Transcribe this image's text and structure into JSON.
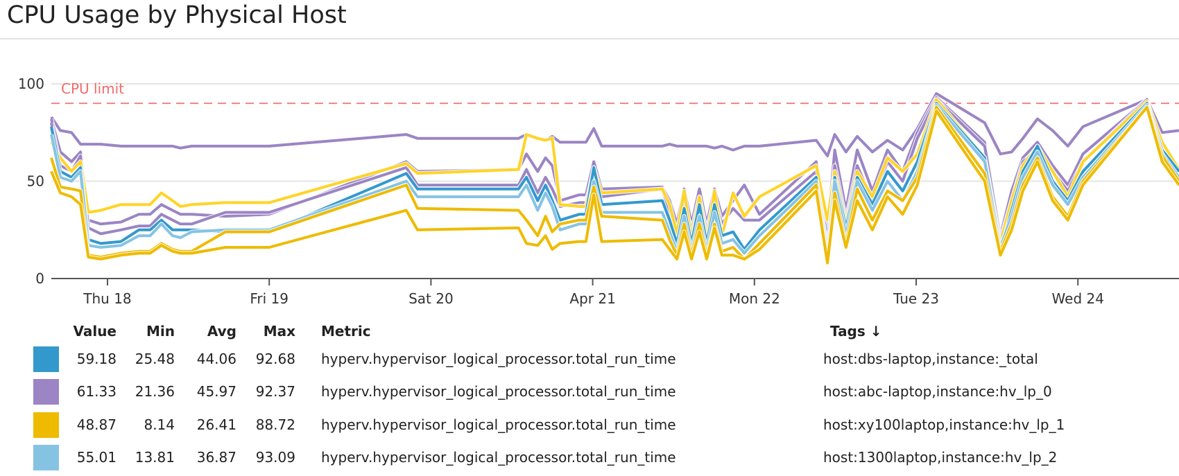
{
  "title": "CPU Usage by Physical Host",
  "chart_data": {
    "type": "line",
    "title": "CPU Usage by Physical Host",
    "ylim": [
      0,
      100
    ],
    "yticks": [
      "0",
      "50",
      "100"
    ],
    "xlim": [
      "04-17 15:40",
      "04-24 15:00"
    ],
    "xticks": [
      {
        "at": "04-18 00:00",
        "label": "Thu 18"
      },
      {
        "at": "04-19 00:00",
        "label": "Fri 19"
      },
      {
        "at": "04-20 00:00",
        "label": "Sat 20"
      },
      {
        "at": "04-21 00:00",
        "label": "Apr 21"
      },
      {
        "at": "04-22 00:00",
        "label": "Mon 22"
      },
      {
        "at": "04-23 00:00",
        "label": "Tue 23"
      },
      {
        "at": "04-24 00:00",
        "label": "Wed 24"
      }
    ],
    "grid": true,
    "marker": {
      "value": 90,
      "label": "CPU limit",
      "color": "#f26b6b",
      "style": "dashed"
    },
    "x": [
      "04-17 15:40",
      "04-17 17:00",
      "04-17 18:40",
      "04-17 20:00",
      "04-17 21:10",
      "04-17 23:00",
      "04-18 02:00",
      "04-18 04:40",
      "04-18 06:20",
      "04-18 08:00",
      "04-18 09:40",
      "04-18 10:50",
      "04-18 12:30",
      "04-18 17:30",
      "04-19 00:00",
      "04-19 20:20",
      "04-19 22:00",
      "04-20 13:00",
      "04-20 14:10",
      "04-20 15:50",
      "04-20 17:00",
      "04-20 18:00",
      "04-20 19:10",
      "04-20 22:00",
      "04-20 23:00",
      "04-21 00:10",
      "04-21 01:20",
      "04-21 10:20",
      "04-21 11:25",
      "04-21 12:30",
      "04-21 13:35",
      "04-21 14:40",
      "04-21 15:50",
      "04-21 16:55",
      "04-21 18:05",
      "04-21 19:10",
      "04-21 20:50",
      "04-21 22:30",
      "04-22 00:45",
      "04-22 09:10",
      "04-22 10:50",
      "04-22 11:55",
      "04-22 13:35",
      "04-22 15:15",
      "04-22 17:30",
      "04-22 19:45",
      "04-22 22:00",
      "04-23 00:10",
      "04-23 03:00",
      "04-23 10:10",
      "04-23 12:30",
      "04-23 14:10",
      "04-23 15:50",
      "04-23 18:00",
      "04-23 20:15",
      "04-23 22:30",
      "04-24 00:45",
      "04-24 10:15",
      "04-24 12:30",
      "04-24 15:00"
    ],
    "series": [
      {
        "color": "#9b85c4",
        "values": [
          83,
          76,
          75,
          69,
          69,
          69,
          68,
          68,
          68,
          68,
          68,
          67,
          68,
          68,
          68,
          74,
          72,
          72,
          74,
          72,
          71,
          73,
          70,
          70,
          70,
          77,
          68,
          68,
          69,
          68,
          68,
          68,
          68,
          68,
          67,
          68,
          66,
          68,
          68,
          71,
          63,
          74,
          65,
          73,
          65,
          71,
          66,
          77,
          95,
          80,
          64,
          65,
          72,
          82,
          76,
          68,
          78,
          92,
          75,
          76
        ]
      },
      {
        "color": "#9b85c4",
        "values": [
          82,
          65,
          60,
          65,
          30,
          28,
          29,
          33,
          33,
          38,
          35,
          33,
          33,
          32,
          33,
          60,
          55,
          56,
          64,
          55,
          62,
          58,
          40,
          43,
          43,
          60,
          46,
          47,
          40,
          28,
          46,
          28,
          46,
          28,
          46,
          32,
          40,
          48,
          33,
          60,
          25,
          66,
          35,
          66,
          45,
          66,
          55,
          75,
          93,
          70,
          22,
          45,
          62,
          70,
          58,
          48,
          64,
          92,
          62,
          55
        ]
      },
      {
        "color": "#9b85c4",
        "values": [
          80,
          58,
          55,
          63,
          26,
          23,
          25,
          27,
          27,
          33,
          30,
          28,
          28,
          34,
          34,
          57,
          48,
          48,
          56,
          44,
          52,
          46,
          37,
          39,
          39,
          55,
          42,
          46,
          34,
          24,
          40,
          24,
          42,
          24,
          42,
          28,
          36,
          30,
          30,
          55,
          20,
          58,
          30,
          58,
          40,
          60,
          50,
          72,
          92,
          68,
          20,
          40,
          60,
          66,
          55,
          45,
          60,
          92,
          60,
          52
        ]
      },
      {
        "color": "#ffd426",
        "values": [
          70,
          62,
          55,
          60,
          34,
          35,
          38,
          38,
          38,
          44,
          40,
          37,
          38,
          39,
          39,
          59,
          54,
          56,
          74,
          72,
          71,
          72,
          38,
          37,
          37,
          57,
          44,
          46,
          38,
          23,
          45,
          20,
          42,
          20,
          45,
          22,
          44,
          32,
          42,
          58,
          30,
          55,
          28,
          55,
          42,
          62,
          55,
          64,
          92,
          62,
          18,
          40,
          58,
          68,
          55,
          42,
          60,
          91,
          70,
          56
        ]
      },
      {
        "color": "#3399cc",
        "values": [
          78,
          55,
          52,
          57,
          20,
          18,
          19,
          25,
          25,
          30,
          25,
          25,
          25,
          24,
          24,
          54,
          46,
          46,
          52,
          40,
          48,
          40,
          30,
          33,
          33,
          57,
          38,
          40,
          30,
          18,
          36,
          18,
          38,
          18,
          38,
          22,
          24,
          15,
          25,
          52,
          15,
          52,
          26,
          52,
          38,
          55,
          45,
          60,
          90,
          62,
          14,
          35,
          55,
          68,
          50,
          40,
          55,
          90,
          66,
          55
        ]
      },
      {
        "color": "#86c3e3",
        "values": [
          74,
          52,
          50,
          55,
          17,
          16,
          17,
          22,
          22,
          28,
          22,
          21,
          24,
          25,
          25,
          50,
          42,
          42,
          48,
          35,
          44,
          37,
          25,
          28,
          28,
          50,
          34,
          34,
          24,
          14,
          32,
          14,
          32,
          14,
          34,
          18,
          20,
          13,
          22,
          50,
          13,
          50,
          22,
          50,
          35,
          50,
          40,
          55,
          89,
          60,
          16,
          32,
          52,
          65,
          48,
          38,
          52,
          89,
          64,
          52
        ]
      },
      {
        "color": "#eebb00",
        "values": [
          62,
          47,
          46,
          45,
          12,
          11,
          13,
          14,
          14,
          18,
          15,
          14,
          14,
          24,
          24,
          48,
          36,
          35,
          30,
          22,
          32,
          24,
          28,
          30,
          30,
          47,
          32,
          30,
          20,
          12,
          28,
          12,
          28,
          12,
          28,
          14,
          16,
          10,
          18,
          48,
          10,
          44,
          18,
          46,
          30,
          45,
          40,
          52,
          88,
          54,
          14,
          28,
          48,
          62,
          42,
          32,
          50,
          88,
          63,
          50
        ]
      },
      {
        "color": "#eebb00",
        "values": [
          55,
          44,
          42,
          38,
          11,
          10,
          12,
          13,
          13,
          17,
          14,
          13,
          13,
          16,
          16,
          35,
          25,
          26,
          18,
          17,
          22,
          15,
          18,
          19,
          19,
          43,
          19,
          20,
          15,
          10,
          24,
          10,
          24,
          10,
          26,
          12,
          12,
          10,
          15,
          45,
          8,
          40,
          16,
          40,
          25,
          42,
          33,
          48,
          86,
          50,
          12,
          25,
          45,
          60,
          40,
          30,
          48,
          88,
          60,
          48
        ]
      }
    ]
  },
  "legend": {
    "headers": {
      "value": "Value",
      "min": "Min",
      "avg": "Avg",
      "max": "Max",
      "metric": "Metric",
      "tags": "Tags ↓"
    },
    "rows": [
      {
        "color": "#3399cc",
        "value": "59.18",
        "min": "25.48",
        "avg": "44.06",
        "max": "92.68",
        "metric": "hyperv.hypervisor_logical_processor.total_run_time",
        "tags": "host:dbs-laptop,instance:_total"
      },
      {
        "color": "#9b85c4",
        "value": "61.33",
        "min": "21.36",
        "avg": "45.97",
        "max": "92.37",
        "metric": "hyperv.hypervisor_logical_processor.total_run_time",
        "tags": "host:abc-laptop,instance:hv_lp_0"
      },
      {
        "color": "#eebb00",
        "value": "48.87",
        "min": "8.14",
        "avg": "26.41",
        "max": "88.72",
        "metric": "hyperv.hypervisor_logical_processor.total_run_time",
        "tags": "host:xy100laptop,instance:hv_lp_1"
      },
      {
        "color": "#86c3e3",
        "value": "55.01",
        "min": "13.81",
        "avg": "36.87",
        "max": "93.09",
        "metric": "hyperv.hypervisor_logical_processor.total_run_time",
        "tags": "host:1300laptop,instance:hv_lp_2"
      }
    ]
  }
}
